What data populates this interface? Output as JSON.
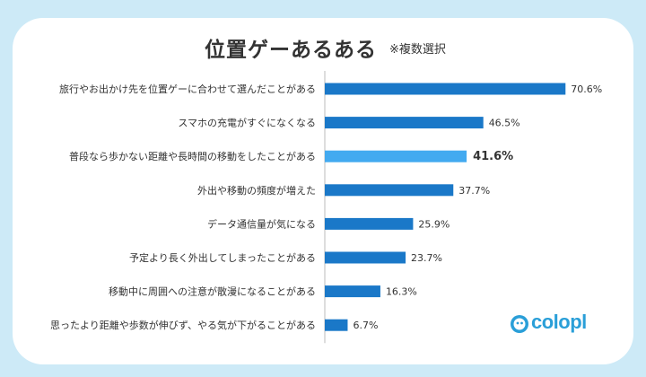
{
  "header": {
    "title": "位置ゲーあるある",
    "note": "※複数選択"
  },
  "logo": {
    "text": "colopl"
  },
  "colors": {
    "bar": "#1a78c8",
    "highlight_bar": "#43aaf0",
    "background": "#cdeaf7"
  },
  "chart_data": {
    "type": "bar",
    "orientation": "horizontal",
    "categories": [
      "旅行やお出かけ先を位置ゲーに合わせて選んだことがある",
      "スマホの充電がすぐになくなる",
      "普段なら歩かない距離や長時間の移動をしたことがある",
      "外出や移動の頻度が増えた",
      "データ通信量が気になる",
      "予定より長く外出してしまったことがある",
      "移動中に周囲への注意が散漫になることがある",
      "思ったより距離や歩数が伸びず、やる気が下がることがある"
    ],
    "values": [
      70.6,
      46.5,
      41.6,
      37.7,
      25.9,
      23.7,
      16.3,
      6.7
    ],
    "value_labels": [
      "70.6%",
      "46.5%",
      "41.6%",
      "37.7%",
      "25.9%",
      "23.7%",
      "16.3%",
      "6.7%"
    ],
    "highlight_index": 2,
    "xlim": [
      0,
      100
    ],
    "title": "位置ゲーあるある",
    "xlabel": "",
    "ylabel": "",
    "grid": false
  }
}
